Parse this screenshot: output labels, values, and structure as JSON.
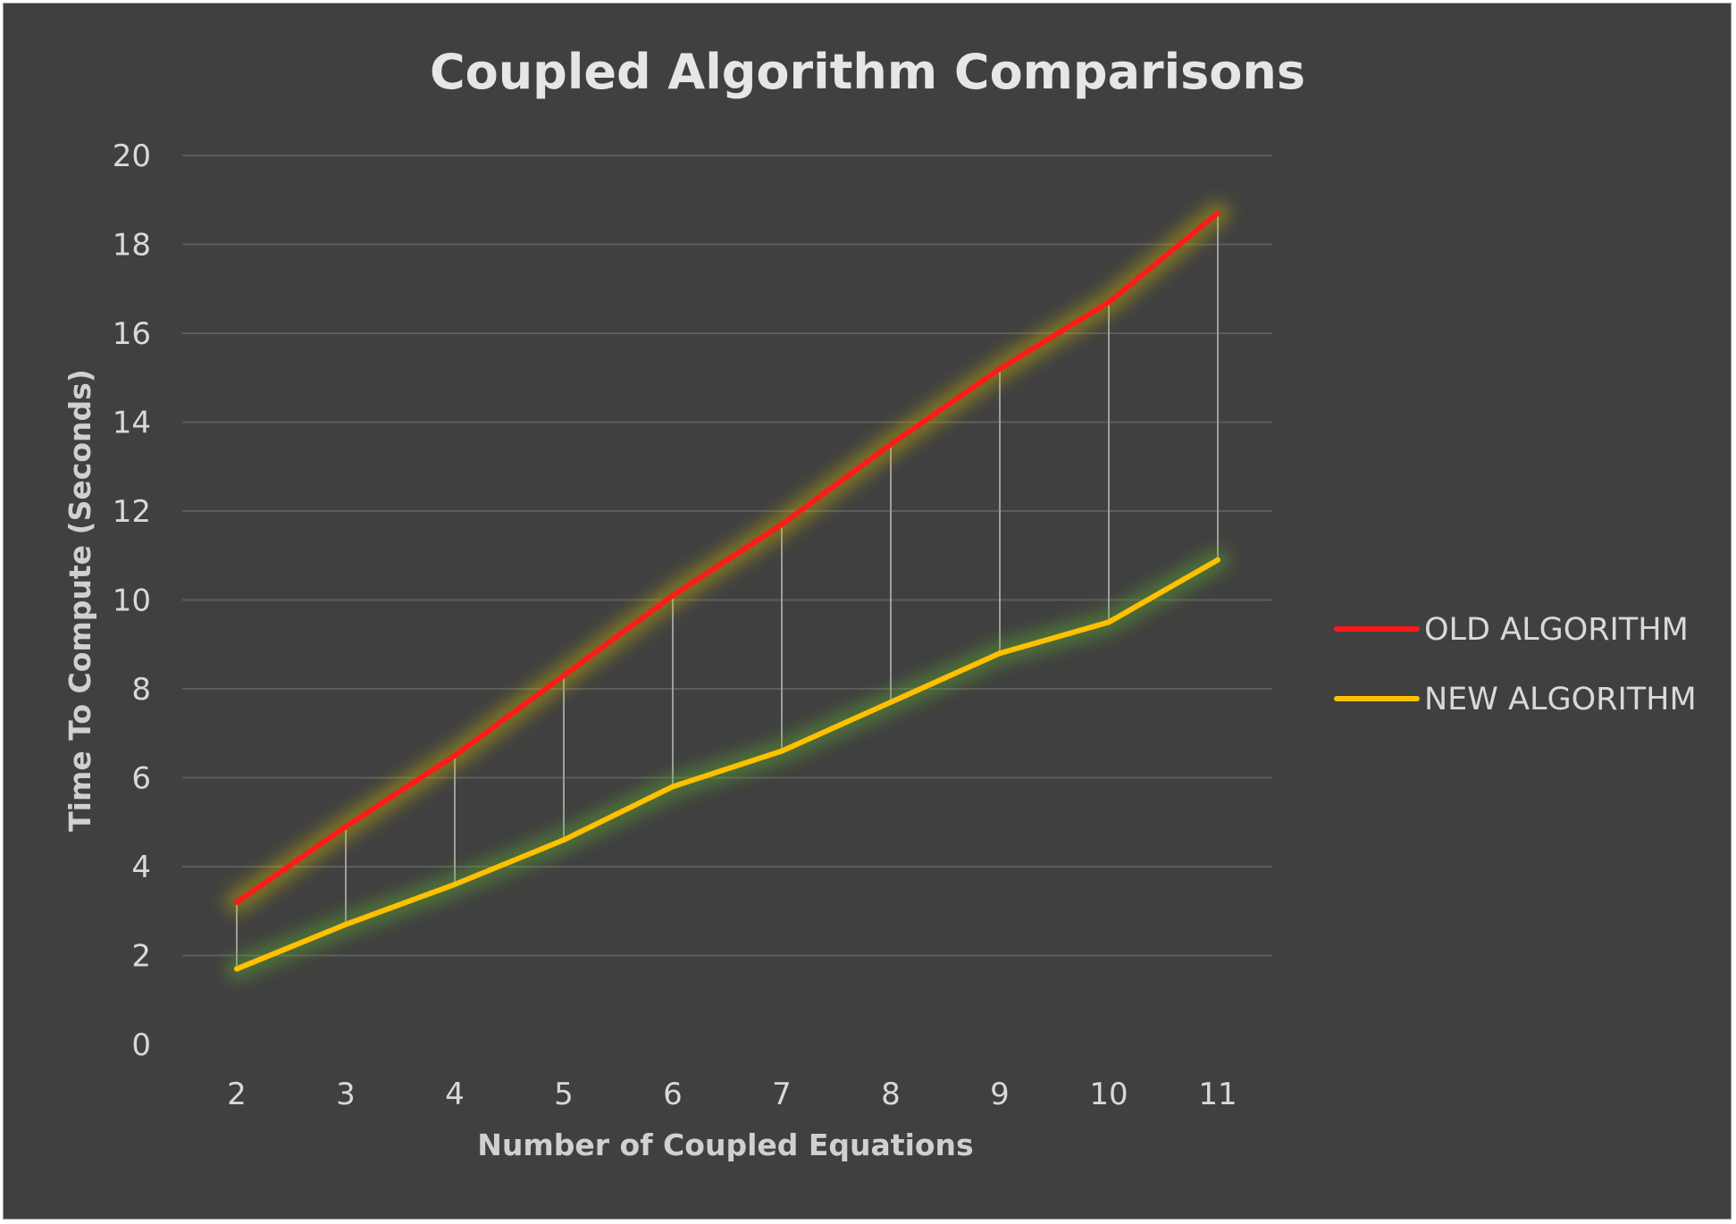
{
  "chart_data": {
    "type": "line",
    "title": "Coupled Algorithm Comparisons",
    "xlabel": "Number of Coupled Equations",
    "ylabel": "Time  To Compute (Seconds)",
    "categories": [
      "2",
      "3",
      "4",
      "5",
      "6",
      "7",
      "8",
      "9",
      "10",
      "11"
    ],
    "yticks": [
      "0",
      "2",
      "4",
      "6",
      "8",
      "10",
      "12",
      "14",
      "16",
      "18",
      "20"
    ],
    "ylim": [
      0,
      20
    ],
    "grid": true,
    "drop_lines": true,
    "legend_position": "right",
    "series": [
      {
        "name": "OLD ALGORITHM",
        "color": "#ff1a1a",
        "glow": "#c8b400",
        "values": [
          3.2,
          4.9,
          6.5,
          8.3,
          10.1,
          11.7,
          13.5,
          15.2,
          16.7,
          18.7
        ]
      },
      {
        "name": "NEW ALGORITHM",
        "color": "#ffc000",
        "glow": "#5fae2e",
        "values": [
          1.7,
          2.7,
          3.6,
          4.6,
          5.8,
          6.6,
          7.7,
          8.8,
          9.5,
          10.9
        ]
      }
    ],
    "colors": {
      "background": "#404040",
      "grid": "#5c5c5c",
      "drop_line": "#9e9e9e",
      "text": "#d9d9d9"
    }
  }
}
